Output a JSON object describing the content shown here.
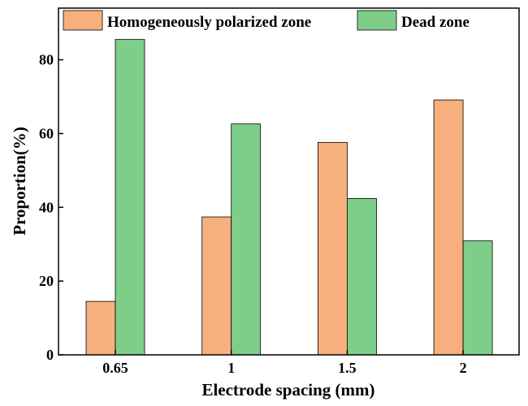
{
  "chart_data": {
    "type": "bar",
    "title": "",
    "xlabel": "Electrode spacing (mm)",
    "ylabel": "Proportion(%)",
    "categories": [
      "0.65",
      "1",
      "1.5",
      "2"
    ],
    "series": [
      {
        "name": "Homogeneously polarized zone",
        "color": "#F8AF7E",
        "values": [
          14.5,
          37.4,
          57.6,
          69.1
        ]
      },
      {
        "name": "Dead zone",
        "color": "#7ECE8A",
        "values": [
          85.5,
          62.6,
          42.4,
          30.9
        ]
      }
    ],
    "ylim": [
      0,
      94
    ],
    "yticks": [
      0,
      20,
      40,
      60,
      80
    ],
    "grid": false,
    "legend_position": "top"
  }
}
